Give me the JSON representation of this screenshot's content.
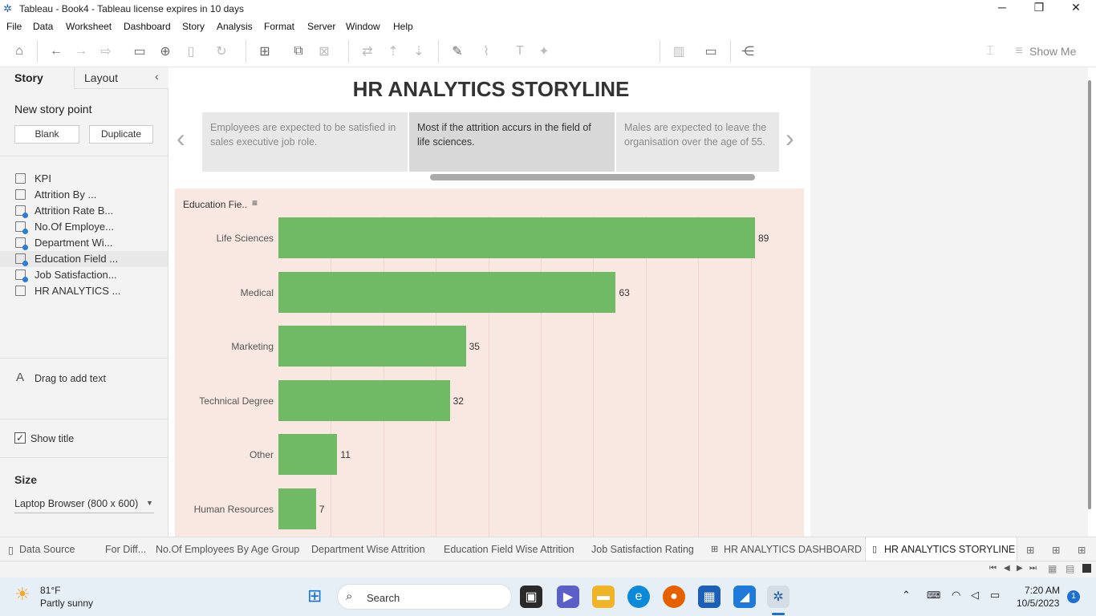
{
  "titlebar": {
    "title": "Tableau - Book4 - Tableau license expires in 10 days",
    "minimize": "─",
    "restore": "❐",
    "close": "✕"
  },
  "menu": [
    "File",
    "Data",
    "Worksheet",
    "Dashboard",
    "Story",
    "Analysis",
    "Format",
    "Server",
    "Window",
    "Help"
  ],
  "toolbar": {
    "show_me": "Show Me"
  },
  "left_panel": {
    "tab_story": "Story",
    "tab_layout": "Layout",
    "new_story_point": "New story point",
    "blank": "Blank",
    "duplicate": "Duplicate",
    "items": [
      "KPI",
      "Attrition By ...",
      "Attrition Rate B...",
      "No.Of Employe...",
      "Department Wi...",
      "Education Field ...",
      "Job Satisfaction...",
      "HR ANALYTICS ..."
    ],
    "drag_text": "Drag to add text",
    "show_title": "Show title",
    "size_heading": "Size",
    "size_value": "Laptop Browser (800 x 600)"
  },
  "story": {
    "title": "HR ANALYTICS STORYLINE",
    "points": [
      "Employees are expected to be satisfied in sales executive job role.",
      "Most if the attrition accurs in the field of life sciences.",
      "Males are expected  to leave the organisation over the age of 55."
    ]
  },
  "chart_data": {
    "type": "bar",
    "orientation": "horizontal",
    "header": "Education Fie..",
    "categories": [
      "Life Sciences",
      "Medical",
      "Marketing",
      "Technical Degree",
      "Other",
      "Human Resources"
    ],
    "values": [
      89,
      63,
      35,
      32,
      11,
      7
    ],
    "bar_color": "#70b965",
    "background": "#f9e8e1"
  },
  "sheet_tabs": [
    "Data Source",
    "For Diff...",
    "No.Of Employees By Age Group",
    "Department Wise Attrition",
    "Education Field Wise Attrition",
    "Job Satisfaction Rating",
    "HR ANALYTICS DASHBOARD",
    "HR ANALYTICS STORYLINE"
  ],
  "taskbar": {
    "temp": "81°F",
    "weather": "Partly sunny",
    "search": "Search",
    "time": "7:20 AM",
    "date": "10/5/2023",
    "notif": "1"
  }
}
